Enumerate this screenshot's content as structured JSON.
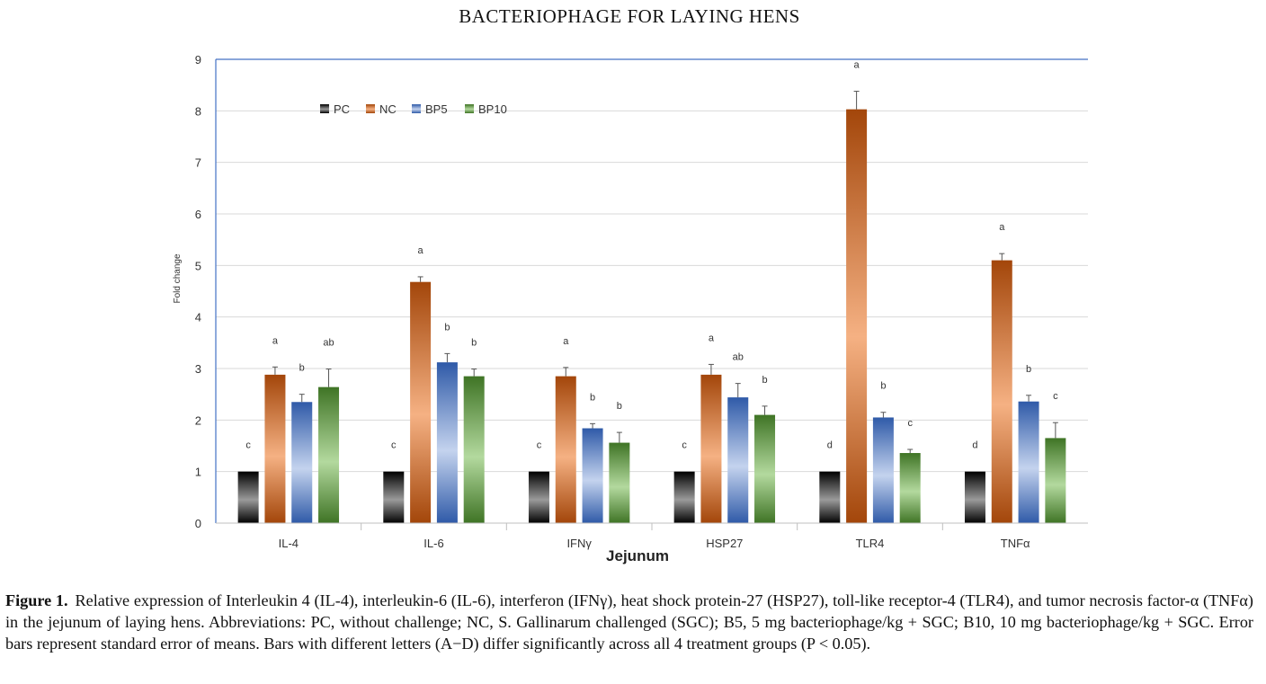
{
  "running_head": "BACTERIOPHAGE FOR LAYING HENS",
  "caption": {
    "label": "Figure 1.",
    "text": "Relative expression of Interleukin 4 (IL-4), interleukin-6 (IL-6), interferon (IFNγ), heat shock protein-27 (HSP27), toll-like receptor-4 (TLR4), and tumor necrosis factor-α (TNFα) in the jejunum of laying hens. Abbreviations: PC, without challenge; NC, S. Gallinarum challenged (SGC); B5, 5 mg bacteriophage/kg + SGC; B10, 10 mg bacteriophage/kg + SGC. Error bars represent standard error of means. Bars with different letters (A−D) differ significantly across all 4 treatment groups (P < 0.05)."
  },
  "colors": {
    "PC": [
      "#000000",
      "#9a9a9a",
      "#000000"
    ],
    "NC": [
      "#a3460a",
      "#f5b183",
      "#a3460a"
    ],
    "BP5": [
      "#2f5aa8",
      "#c4d3ee",
      "#2f5aa8"
    ],
    "BP10": [
      "#3f7425",
      "#b3d99e",
      "#3f7425"
    ],
    "axis": "#4472c4",
    "grid": "#d9d9d9"
  },
  "chart_data": {
    "type": "bar",
    "title": "",
    "xlabel": "Jejunum",
    "ylabel": "Fold change",
    "ylim": [
      0,
      9
    ],
    "yticks": [
      "0",
      "1",
      "2",
      "3",
      "4",
      "5",
      "6",
      "7",
      "8",
      "9"
    ],
    "grid": true,
    "legend_position": "top-left",
    "categories": [
      "IL-4",
      "IL-6",
      "IFNγ",
      "HSP27",
      "TLR4",
      "TNFα"
    ],
    "series": [
      {
        "name": "PC",
        "values": [
          1.0,
          1.0,
          1.0,
          1.0,
          1.0,
          1.0
        ],
        "errors": [
          0,
          0,
          0,
          0,
          0,
          0
        ],
        "letters": [
          "c",
          "c",
          "c",
          "c",
          "d",
          "d"
        ]
      },
      {
        "name": "NC",
        "values": [
          2.88,
          4.68,
          2.85,
          2.88,
          8.03,
          5.1
        ],
        "errors": [
          0.15,
          0.1,
          0.17,
          0.2,
          0.35,
          0.13
        ],
        "letters": [
          "a",
          "a",
          "a",
          "a",
          "a",
          "a"
        ]
      },
      {
        "name": "BP5",
        "values": [
          2.35,
          3.12,
          1.84,
          2.44,
          2.05,
          2.36
        ],
        "errors": [
          0.15,
          0.17,
          0.09,
          0.27,
          0.1,
          0.12
        ],
        "letters": [
          "b",
          "b",
          "b",
          "ab",
          "b",
          "b"
        ]
      },
      {
        "name": "BP10",
        "values": [
          2.64,
          2.85,
          1.56,
          2.1,
          1.36,
          1.65
        ],
        "errors": [
          0.35,
          0.14,
          0.2,
          0.17,
          0.07,
          0.3
        ],
        "letters": [
          "ab",
          "b",
          "b",
          "b",
          "c",
          "c"
        ]
      }
    ]
  }
}
